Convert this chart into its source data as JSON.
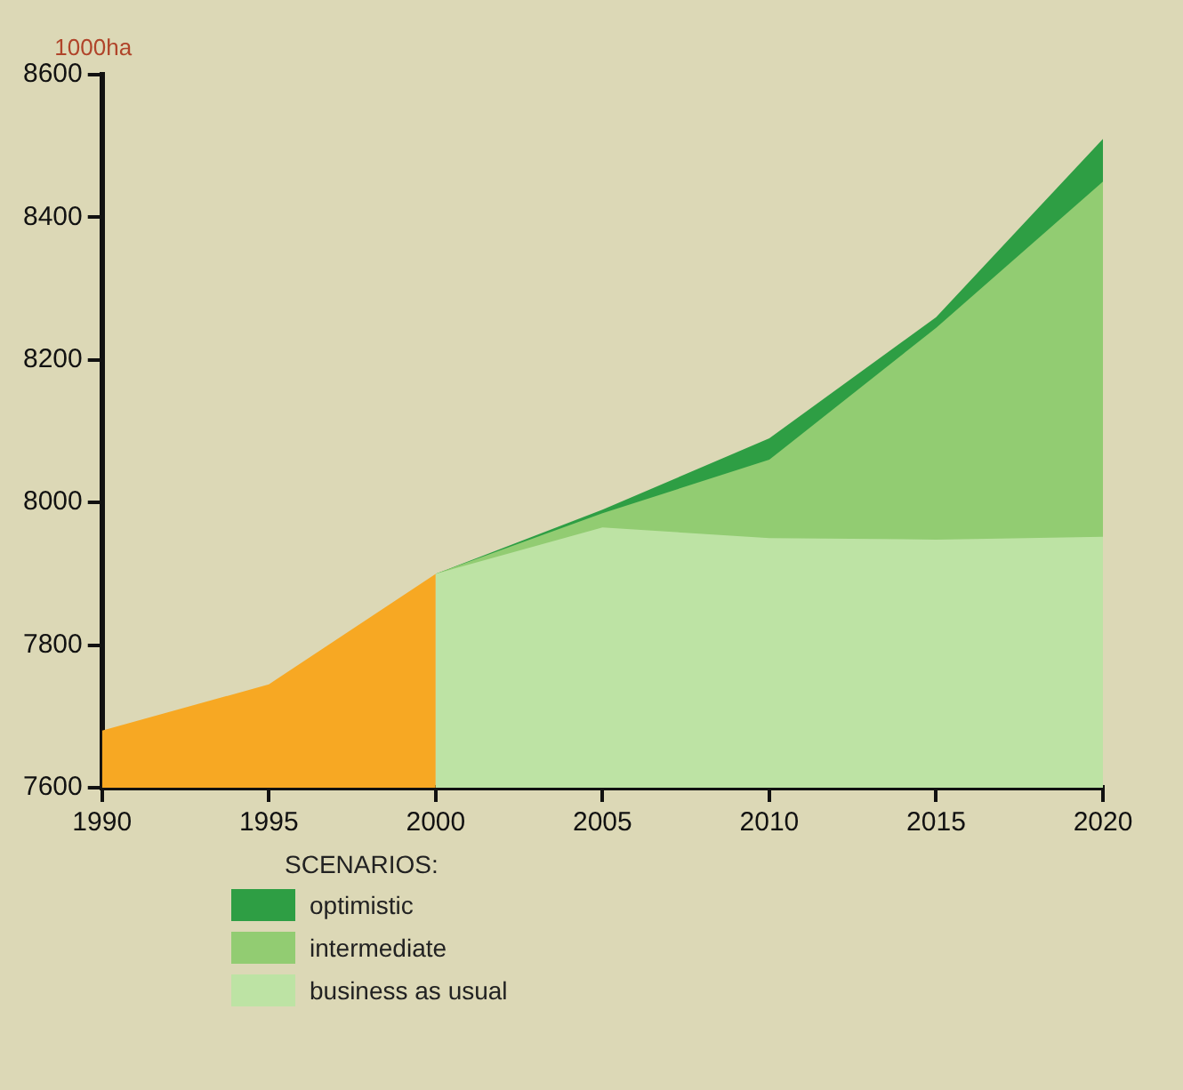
{
  "chart_data": {
    "type": "area",
    "ylabel": "1000ha",
    "legend_title": "SCENARIOS:",
    "legend": "bottom left",
    "grid": false,
    "xlim": [
      1990,
      2020
    ],
    "xticks": [
      1990,
      1995,
      2000,
      2005,
      2010,
      2015,
      2020
    ],
    "ylim": [
      7600,
      8600
    ],
    "yticks": [
      7600,
      7800,
      8000,
      8200,
      8400,
      8600
    ],
    "series": [
      {
        "name": "optimistic",
        "color": "#2e9e44",
        "x": [
          2000,
          2005,
          2010,
          2015,
          2020
        ],
        "values": [
          7900,
          7990,
          8090,
          8260,
          8510
        ]
      },
      {
        "name": "intermediate",
        "color": "#92cc72",
        "x": [
          2000,
          2005,
          2010,
          2015,
          2020
        ],
        "values": [
          7900,
          7985,
          8060,
          8245,
          8450
        ]
      },
      {
        "name": "business as usual",
        "color": "#bde3a4",
        "x": [
          2000,
          2005,
          2010,
          2015,
          2020
        ],
        "values": [
          7900,
          7965,
          7950,
          7948,
          7952
        ]
      },
      {
        "color": "#f7a823",
        "x": [
          1990,
          1995,
          2000
        ],
        "values": [
          7680,
          7745,
          7900
        ]
      }
    ]
  }
}
